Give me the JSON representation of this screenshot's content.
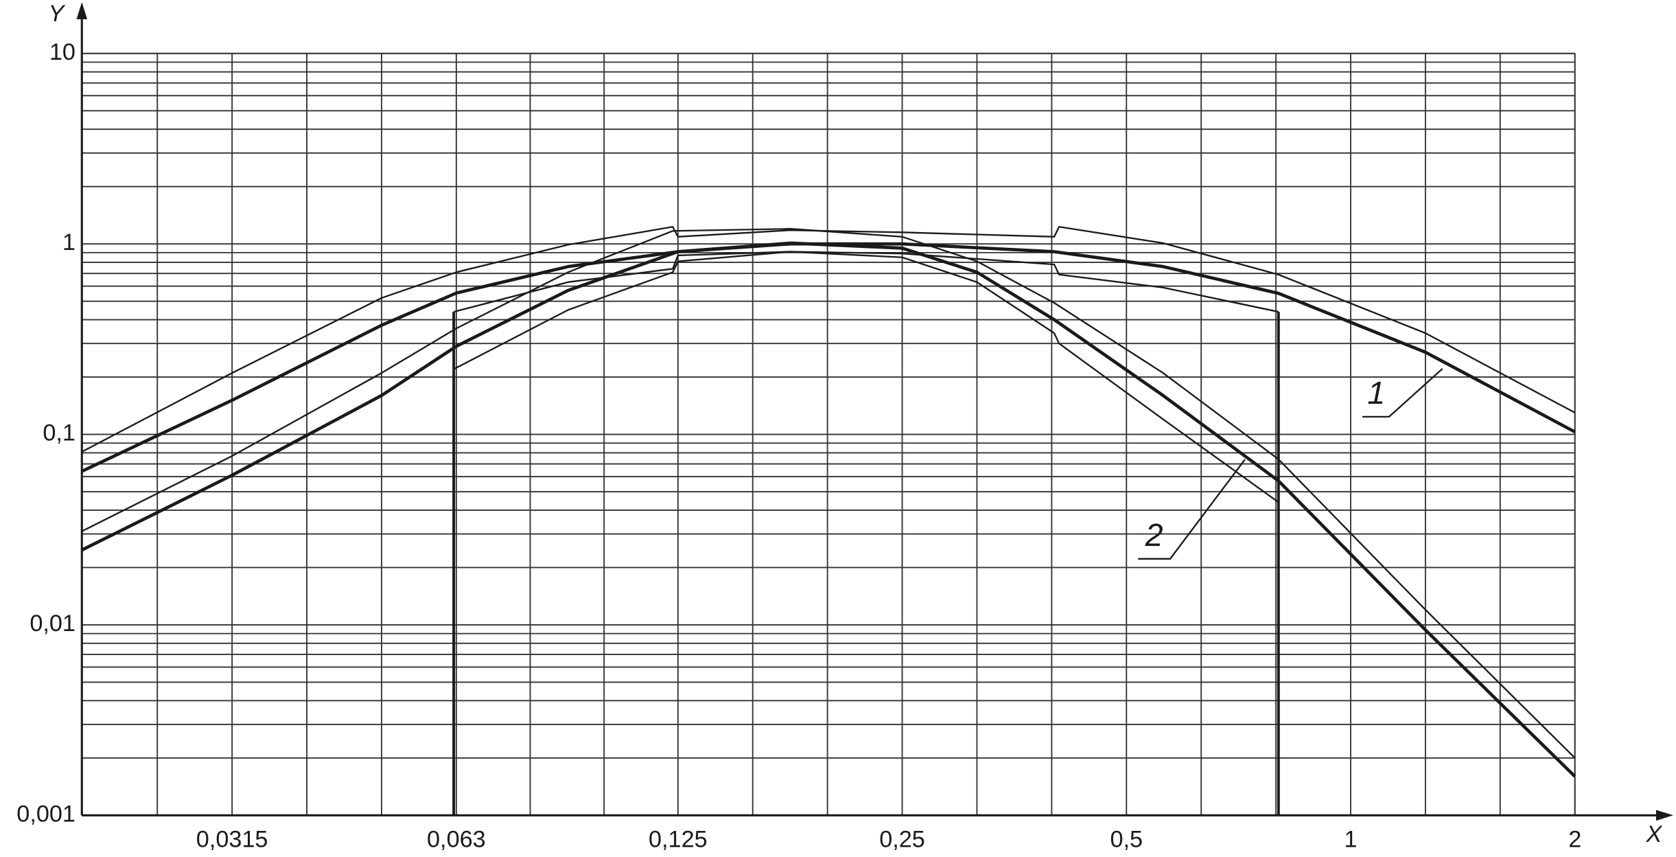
{
  "chart_data": {
    "type": "line",
    "x_scale": "log",
    "y_scale": "log",
    "grid": true,
    "xlabel": "X",
    "ylabel": "Y",
    "xlim": [
      0.0198,
      2
    ],
    "xticks": [
      {
        "value": 0.0315,
        "label": "0,0315"
      },
      {
        "value": 0.063,
        "label": "0,063"
      },
      {
        "value": 0.125,
        "label": "0,125"
      },
      {
        "value": 0.25,
        "label": "0,25"
      },
      {
        "value": 0.5,
        "label": "0,5"
      },
      1,
      2
    ],
    "ylim": [
      0.001,
      10
    ],
    "yticks": [
      {
        "value": 0.001,
        "label": "0,001"
      },
      {
        "value": 0.01,
        "label": "0,01"
      },
      {
        "value": 0.1,
        "label": "0,1"
      },
      1,
      10
    ],
    "annotations": [
      "1",
      "2"
    ],
    "series": [
      {
        "color": "#1a1a1a",
        "width": 3,
        "x": [
          0.0198,
          0.0315,
          0.05,
          0.063,
          0.089,
          0.125,
          0.177,
          0.25,
          0.4,
          0.56,
          0.8,
          1.26,
          2
        ],
        "values": [
          0.064,
          0.151,
          0.374,
          0.552,
          0.76,
          0.91,
          1.0,
          1.0,
          0.91,
          0.76,
          0.55,
          0.27,
          0.103
        ]
      },
      {
        "color": "#1a1a1a",
        "width": 1.5,
        "x": [
          0.0198,
          0.0315,
          0.05,
          0.063,
          0.089,
          0.123,
          0.125,
          0.177,
          0.25,
          0.4,
          0.406,
          0.56,
          0.8,
          1.26,
          2
        ],
        "values": [
          0.081,
          0.21,
          0.52,
          0.71,
          0.99,
          1.23,
          1.09,
          1.18,
          1.15,
          1.09,
          1.23,
          1.01,
          0.69,
          0.34,
          0.13
        ]
      },
      {
        "color": "#1a1a1a",
        "width": 1.5,
        "x": [
          0.0625,
          0.089,
          0.123,
          0.125,
          0.177,
          0.25,
          0.4,
          0.406,
          0.56,
          0.8
        ],
        "values": [
          0.44,
          0.63,
          0.74,
          0.87,
          0.91,
          0.89,
          0.78,
          0.69,
          0.59,
          0.44
        ]
      },
      {
        "color": "#1a1a1a",
        "width": 3,
        "x": [
          0.0198,
          0.0315,
          0.05,
          0.063,
          0.089,
          0.125,
          0.177,
          0.25,
          0.315,
          0.4,
          0.56,
          0.8,
          1.26,
          2
        ],
        "values": [
          0.0247,
          0.061,
          0.16,
          0.29,
          0.57,
          0.91,
          1.01,
          0.95,
          0.71,
          0.4,
          0.16,
          0.057,
          0.0094,
          0.0016
        ]
      },
      {
        "color": "#1a1a1a",
        "width": 1.5,
        "x": [
          0.0198,
          0.0315,
          0.05,
          0.063,
          0.089,
          0.123,
          0.177,
          0.25,
          0.315,
          0.4,
          0.56,
          0.8,
          1.26,
          2
        ],
        "values": [
          0.031,
          0.077,
          0.21,
          0.36,
          0.71,
          1.17,
          1.2,
          1.09,
          0.81,
          0.49,
          0.21,
          0.074,
          0.012,
          0.002
        ]
      },
      {
        "color": "#1a1a1a",
        "width": 1.5,
        "x": [
          0.0625,
          0.089,
          0.123,
          0.125,
          0.177,
          0.25,
          0.315,
          0.4,
          0.406,
          0.56,
          0.8
        ],
        "values": [
          0.22,
          0.45,
          0.71,
          0.81,
          0.91,
          0.85,
          0.63,
          0.34,
          0.3,
          0.12,
          0.044
        ]
      }
    ],
    "vlines": [
      {
        "x": 0.0625,
        "ymax": 0.44
      },
      {
        "x": 0.8,
        "ymax": 0.44
      }
    ]
  }
}
